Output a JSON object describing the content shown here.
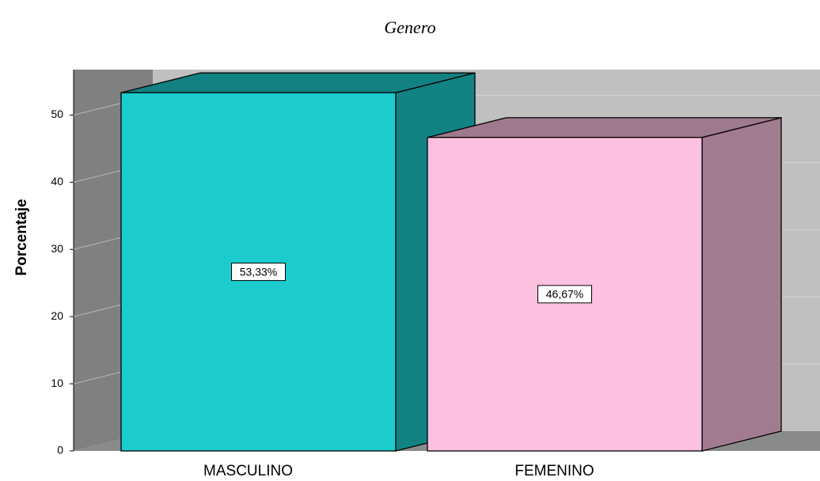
{
  "chart_data": {
    "type": "bar3d",
    "title": "Genero",
    "y_label": "Porcentaje",
    "categories": [
      "MASCULINO",
      "FEMENINO"
    ],
    "values": [
      53.33,
      46.67
    ],
    "value_labels": [
      "53,33%",
      "46,67%"
    ],
    "colors": [
      "#1ccccc",
      "#fcc0e0"
    ],
    "ylim": [
      0,
      57
    ],
    "yticks": [
      0,
      10,
      20,
      30,
      40,
      50
    ],
    "grid": true
  }
}
